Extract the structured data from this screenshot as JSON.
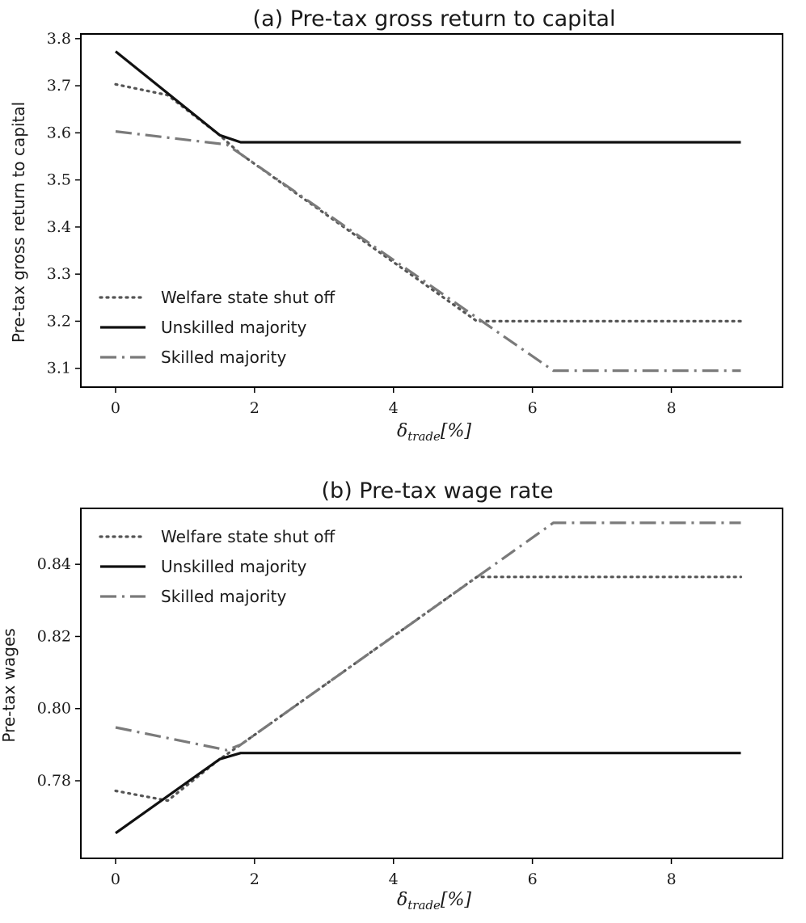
{
  "chart_data": [
    {
      "type": "line",
      "title": "(a) Pre-tax gross return to capital",
      "xlabel": {
        "main": "δ",
        "sub": "trade",
        "suffix": "[%]"
      },
      "ylabel": "Pre-tax gross return to capital",
      "xlim": [
        -0.5,
        9.6
      ],
      "ylim": [
        3.06,
        3.81
      ],
      "xticks": [
        0,
        2,
        4,
        6,
        8
      ],
      "yticks": [
        3.1,
        3.2,
        3.3,
        3.4,
        3.5,
        3.6,
        3.7,
        3.8
      ],
      "ytick_labels": [
        "3.1",
        "3.2",
        "3.3",
        "3.4",
        "3.5",
        "3.6",
        "3.7",
        "3.8"
      ],
      "legend_position": "lower-left",
      "series": [
        {
          "name": "Welfare state shut off",
          "style": "dotted",
          "color": "#555555",
          "x": [
            0,
            0.75,
            1.5,
            1.8,
            5.2,
            9
          ],
          "y": [
            3.703,
            3.68,
            3.595,
            3.555,
            3.2,
            3.2
          ]
        },
        {
          "name": "Unskilled majority",
          "style": "solid",
          "color": "#111111",
          "x": [
            0,
            1.5,
            1.8,
            9
          ],
          "y": [
            3.773,
            3.595,
            3.58,
            3.58
          ]
        },
        {
          "name": "Skilled majority",
          "style": "dashdot",
          "color": "#7a7a7a",
          "x": [
            0,
            1.6,
            1.8,
            6.3,
            9
          ],
          "y": [
            3.603,
            3.575,
            3.555,
            3.095,
            3.095
          ]
        }
      ]
    },
    {
      "type": "line",
      "title": "(b) Pre-tax wage rate",
      "xlabel": {
        "main": "δ",
        "sub": "trade",
        "suffix": "[%]"
      },
      "ylabel": "Pre-tax wages",
      "xlim": [
        -0.5,
        9.6
      ],
      "ylim": [
        0.7585,
        0.8555
      ],
      "xticks": [
        0,
        2,
        4,
        6,
        8
      ],
      "yticks": [
        0.78,
        0.8,
        0.82,
        0.84
      ],
      "ytick_labels": [
        "0.78",
        "0.80",
        "0.82",
        "0.84"
      ],
      "legend_position": "upper-left",
      "series": [
        {
          "name": "Welfare state shut off",
          "style": "dotted",
          "color": "#555555",
          "x": [
            0,
            0.75,
            1.5,
            1.8,
            5.2,
            9
          ],
          "y": [
            0.7772,
            0.7745,
            0.786,
            0.79,
            0.8365,
            0.8365
          ]
        },
        {
          "name": "Unskilled majority",
          "style": "solid",
          "color": "#111111",
          "x": [
            0,
            1.5,
            1.8,
            9
          ],
          "y": [
            0.7655,
            0.786,
            0.7877,
            0.7877
          ]
        },
        {
          "name": "Skilled majority",
          "style": "dashdot",
          "color": "#7a7a7a",
          "x": [
            0,
            1.6,
            1.8,
            6.3,
            9
          ],
          "y": [
            0.7948,
            0.7885,
            0.79,
            0.8515,
            0.8515
          ]
        }
      ]
    }
  ]
}
